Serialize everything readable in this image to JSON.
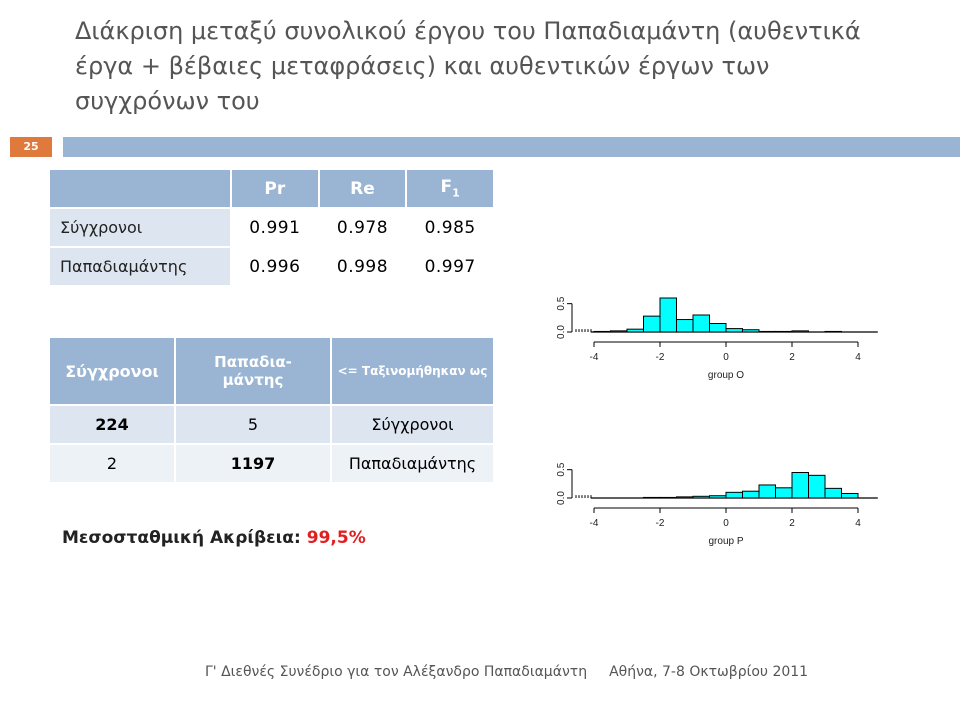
{
  "title": "Διάκριση μεταξύ συνολικού έργου του Παπαδιαμάντη (αυθεντικά έργα + βέβαιες μεταφράσεις) και αυθεντικών έργων των συγχρόνων του",
  "slide_number": "25",
  "table1": {
    "headers": [
      "",
      "Pr",
      "Re",
      "F1"
    ],
    "rows": [
      {
        "label": "Σύγχρονοι",
        "values": [
          "0.991",
          "0.978",
          "0.985"
        ]
      },
      {
        "label": "Παπαδιαμάντης",
        "values": [
          "0.996",
          "0.998",
          "0.997"
        ]
      }
    ]
  },
  "table2": {
    "headers": [
      "Σύγχρονοι",
      "Παπαδια-μάντης",
      "<= Ταξινομήθηκαν ως"
    ],
    "rows": [
      {
        "values": [
          "224",
          "5",
          "Σύγχρονοι"
        ]
      },
      {
        "values": [
          "2",
          "1197",
          "Παπαδιαμάντης"
        ]
      }
    ]
  },
  "accuracy": {
    "label": "Μεσοσταθμική Ακρίβεια:",
    "value": "99,5%"
  },
  "footer": {
    "left": "Γ' Διεθνές Συνέδριο για τον Αλέξανδρο Παπαδιαμάντη",
    "right": "Αθήνα, 7-8 Οκτωβρίου 2011"
  },
  "chart_data": [
    {
      "type": "bar",
      "xlabel": "group O",
      "ylabel": "",
      "x_ticks": [
        -4,
        -2,
        0,
        2,
        4
      ],
      "y_ticks": [
        0.0,
        0.5
      ],
      "xlim": [
        -4.1,
        4.6
      ],
      "ylim": [
        0,
        0.65
      ],
      "bin_width": 0.5,
      "bins_start": [
        -4.0,
        -3.5,
        -3.0,
        -2.5,
        -2.0,
        -1.5,
        -1.0,
        -0.5,
        0.0,
        0.5,
        1.0,
        1.5,
        2.0,
        2.5,
        3.0,
        3.5
      ],
      "values": [
        0.01,
        0.02,
        0.05,
        0.28,
        0.6,
        0.22,
        0.3,
        0.15,
        0.06,
        0.04,
        0.01,
        0.01,
        0.02,
        0.0,
        0.01,
        0.0
      ],
      "color": "#00ffff"
    },
    {
      "type": "bar",
      "xlabel": "group P",
      "ylabel": "",
      "x_ticks": [
        -4,
        -2,
        0,
        2,
        4
      ],
      "y_ticks": [
        0.0,
        0.5
      ],
      "xlim": [
        -4.1,
        4.6
      ],
      "ylim": [
        0,
        0.65
      ],
      "bin_width": 0.5,
      "bins_start": [
        -4.0,
        -3.5,
        -3.0,
        -2.5,
        -2.0,
        -1.5,
        -1.0,
        -0.5,
        0.0,
        0.5,
        1.0,
        1.5,
        2.0,
        2.5,
        3.0,
        3.5
      ],
      "values": [
        0.0,
        0.0,
        0.0,
        0.01,
        0.01,
        0.02,
        0.03,
        0.04,
        0.1,
        0.12,
        0.23,
        0.18,
        0.45,
        0.4,
        0.17,
        0.08
      ],
      "color": "#00ffff"
    }
  ]
}
